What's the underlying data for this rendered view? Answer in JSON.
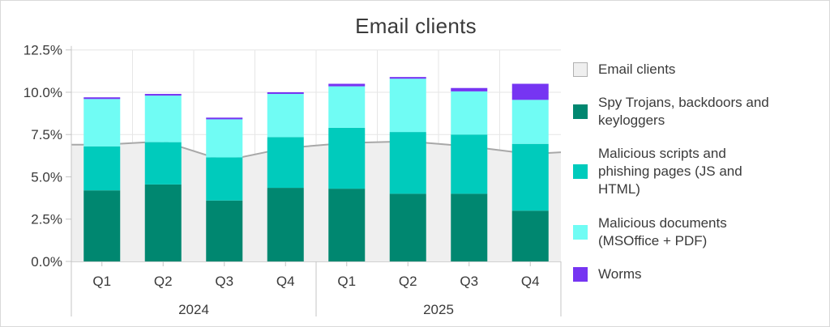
{
  "title": "Email clients",
  "colors": {
    "spy_trojans": "#008770",
    "malicious_scripts": "#00cbbc",
    "malicious_documents": "#70fcf4",
    "worms": "#7635f2",
    "email_clients_fill": "#efefef",
    "email_clients_line": "#a8a8a8",
    "text": "#3a3a3a",
    "grid_light": "#e6e6e6",
    "axis": "#c4c4c4",
    "legend_box_fill": "#efefef",
    "legend_box_border": "#b0b0b0"
  },
  "chart_data": {
    "type": "bar",
    "stacked": true,
    "title": "Email clients",
    "categories": [
      "Q1",
      "Q2",
      "Q3",
      "Q4",
      "Q1",
      "Q2",
      "Q3",
      "Q4"
    ],
    "year_groups": [
      {
        "label": "2024",
        "span": 4
      },
      {
        "label": "2025",
        "span": 4
      }
    ],
    "series": [
      {
        "name": "Spy Trojans, backdoors and keyloggers",
        "color_key": "spy_trojans",
        "values": [
          4.2,
          4.55,
          3.6,
          4.35,
          4.3,
          4.0,
          4.0,
          3.0
        ]
      },
      {
        "name": "Malicious scripts and phishing pages (JS and HTML)",
        "color_key": "malicious_scripts",
        "values": [
          2.6,
          2.5,
          2.55,
          3.0,
          3.6,
          3.65,
          3.5,
          3.95
        ]
      },
      {
        "name": "Malicious documents (MSOffice + PDF)",
        "color_key": "malicious_documents",
        "values": [
          2.8,
          2.75,
          2.25,
          2.55,
          2.45,
          3.15,
          2.55,
          2.6
        ]
      },
      {
        "name": "Worms",
        "color_key": "worms",
        "values": [
          0.1,
          0.1,
          0.1,
          0.1,
          0.15,
          0.1,
          0.2,
          0.95
        ]
      }
    ],
    "area_series": {
      "name": "Email clients",
      "values": [
        6.9,
        7.1,
        5.95,
        6.7,
        7.0,
        7.1,
        6.8,
        6.35
      ],
      "edge_left": 6.9,
      "edge_right": 6.45
    },
    "ylim": [
      0,
      12.5
    ],
    "ytick_step": 2.5,
    "ytick_labels": [
      "0.0%",
      "2.5%",
      "5.0%",
      "7.5%",
      "10.0%",
      "12.5%"
    ],
    "grid": true,
    "legend_position": "right"
  },
  "legend": {
    "items": [
      {
        "label": "Email clients",
        "color_key": "email_clients_box"
      },
      {
        "label": "Spy Trojans, backdoors and\nkeyloggers",
        "color_key": "spy_trojans"
      },
      {
        "label": "Malicious scripts and\nphishing pages (JS and\nHTML)",
        "color_key": "malicious_scripts"
      },
      {
        "label": "Malicious documents\n(MSOffice + PDF)",
        "color_key": "malicious_documents"
      },
      {
        "label": "Worms",
        "color_key": "worms"
      }
    ]
  }
}
